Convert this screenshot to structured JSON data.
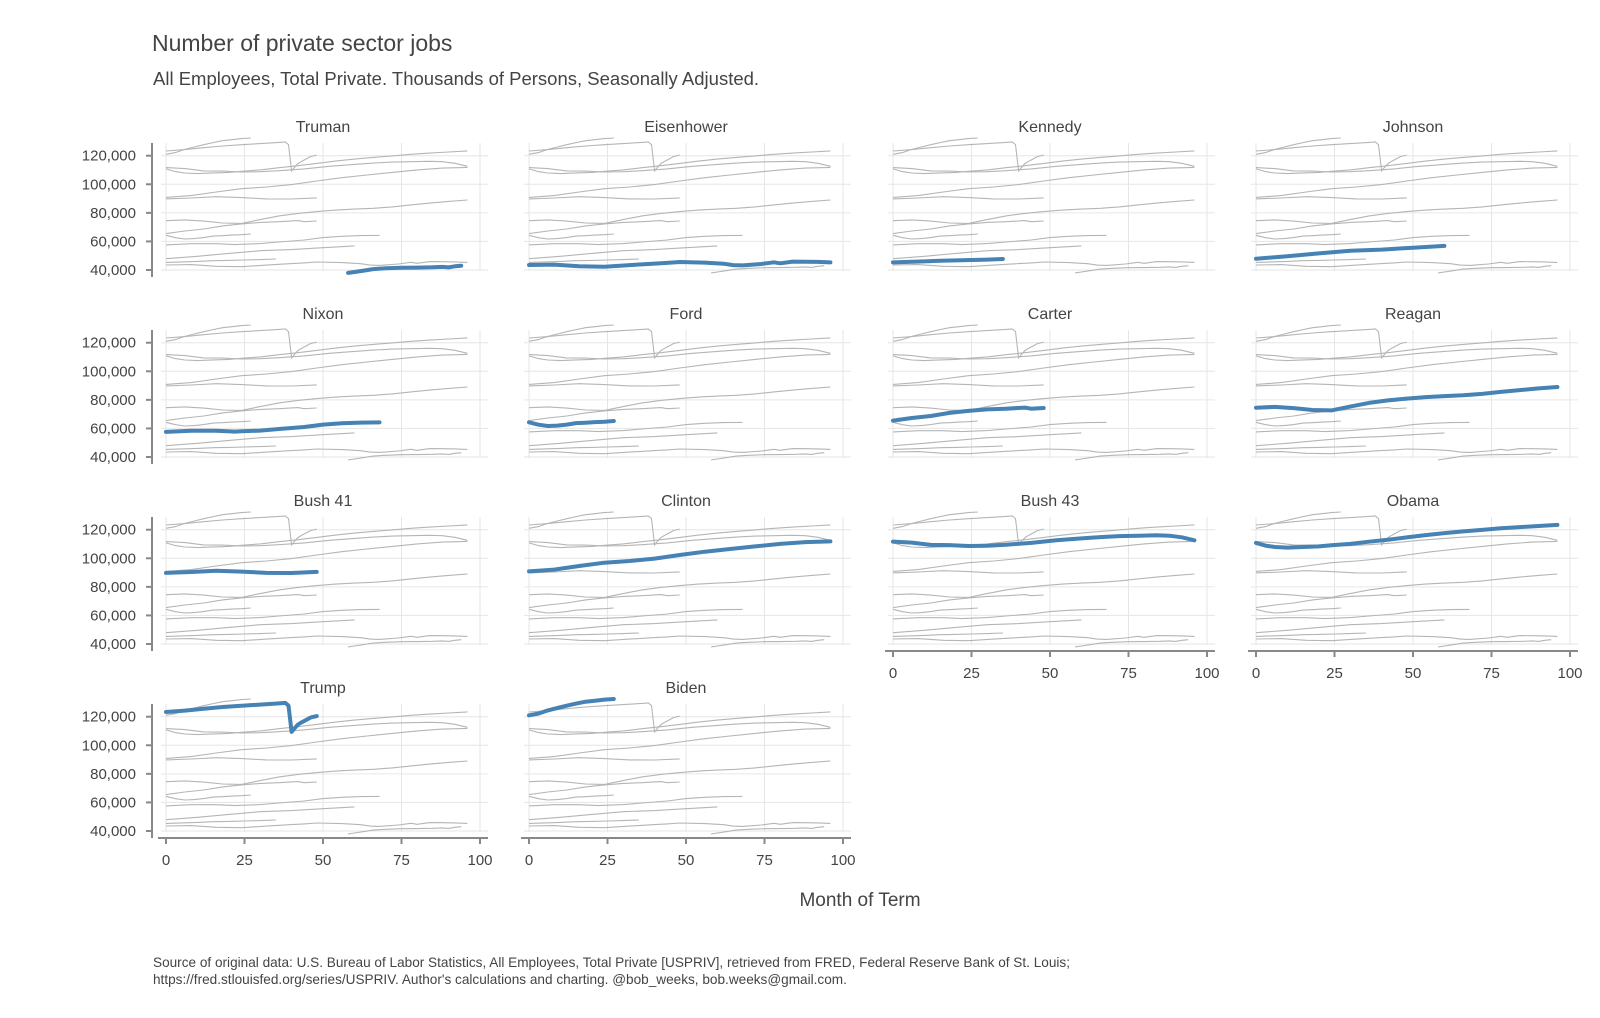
{
  "title": "Number of private sector jobs",
  "subtitle": "All Employees, Total Private. Thousands of Persons, Seasonally Adjusted.",
  "caption_line1": "Source of original data: U.S. Bureau of Labor Statistics, All Employees, Total Private [USPRIV], retrieved from FRED, Federal Reserve Bank of St. Louis;",
  "caption_line2": "https://fred.stlouisfed.org/series/USPRIV. Author's calculations and charting. @bob_weeks, bob.weeks@gmail.com.",
  "chart_data": {
    "type": "line",
    "facet": "small-multiples",
    "xlabel": "Month of Term",
    "ylabel": "",
    "xlim": [
      0,
      100
    ],
    "ylim": [
      40000,
      124000
    ],
    "xticks": [
      0,
      25,
      50,
      75,
      100
    ],
    "yticks": [
      40000,
      60000,
      80000,
      100000,
      120000
    ],
    "ytick_labels": [
      "40,000",
      "60,000",
      "80,000",
      "100,000",
      "120,000"
    ],
    "xtick_labels": [
      "0",
      "25",
      "50",
      "75",
      "100"
    ],
    "grid": true,
    "highlight_color": "#4682b4",
    "background_series_color": "#b5b5b5",
    "series": [
      {
        "name": "Truman",
        "x": [
          58,
          60,
          63,
          66,
          70,
          75,
          80,
          85,
          88,
          90,
          92,
          94
        ],
        "values": [
          38000,
          38600,
          39600,
          40600,
          41200,
          41600,
          41700,
          41900,
          42200,
          41800,
          42600,
          43000
        ]
      },
      {
        "name": "Eisenhower",
        "x": [
          0,
          8,
          16,
          24,
          32,
          40,
          44,
          48,
          56,
          62,
          65,
          68,
          74,
          78,
          80,
          84,
          88,
          92,
          96
        ],
        "values": [
          43500,
          43800,
          42600,
          42300,
          43400,
          44500,
          45000,
          45600,
          45200,
          44400,
          43400,
          43200,
          44200,
          45400,
          44700,
          45900,
          45800,
          45700,
          45300
        ]
      },
      {
        "name": "Kennedy",
        "x": [
          0,
          5,
          10,
          15,
          20,
          25,
          30,
          35
        ],
        "values": [
          45300,
          45700,
          46000,
          46500,
          46700,
          47000,
          47300,
          47700
        ]
      },
      {
        "name": "Johnson",
        "x": [
          0,
          10,
          20,
          30,
          40,
          50,
          60
        ],
        "values": [
          47900,
          49600,
          51600,
          53500,
          54300,
          55600,
          56900
        ]
      },
      {
        "name": "Nixon",
        "x": [
          0,
          8,
          16,
          22,
          24,
          30,
          36,
          44,
          50,
          56,
          62,
          68
        ],
        "values": [
          57600,
          58400,
          58400,
          57800,
          58000,
          58500,
          59600,
          61000,
          62700,
          63600,
          64100,
          64200
        ]
      },
      {
        "name": "Ford",
        "x": [
          0,
          3,
          6,
          9,
          12,
          15,
          18,
          21,
          24,
          27
        ],
        "values": [
          64300,
          62600,
          61700,
          62000,
          62700,
          63700,
          64000,
          64400,
          64700,
          65200
        ]
      },
      {
        "name": "Carter",
        "x": [
          0,
          6,
          12,
          18,
          24,
          30,
          36,
          42,
          44,
          48
        ],
        "values": [
          65500,
          67300,
          68700,
          70900,
          72300,
          73300,
          73800,
          74600,
          73800,
          74300
        ]
      },
      {
        "name": "Reagan",
        "x": [
          0,
          6,
          12,
          18,
          24,
          30,
          36,
          42,
          48,
          54,
          60,
          66,
          72,
          78,
          84,
          90,
          96
        ],
        "values": [
          74500,
          75100,
          74200,
          72900,
          72600,
          75300,
          77900,
          79600,
          80900,
          81900,
          82600,
          83200,
          84200,
          85600,
          86800,
          88000,
          89000
        ]
      },
      {
        "name": "Bush 41",
        "x": [
          0,
          8,
          16,
          24,
          32,
          40,
          48
        ],
        "values": [
          89800,
          90400,
          91300,
          90700,
          89800,
          89700,
          90500
        ]
      },
      {
        "name": "Clinton",
        "x": [
          0,
          8,
          16,
          24,
          32,
          40,
          48,
          56,
          64,
          72,
          80,
          88,
          96
        ],
        "values": [
          90800,
          92100,
          94600,
          96900,
          98100,
          99800,
          102300,
          104600,
          106500,
          108300,
          110100,
          111300,
          111800
        ]
      },
      {
        "name": "Bush 43",
        "x": [
          0,
          6,
          12,
          18,
          24,
          30,
          36,
          44,
          52,
          60,
          66,
          72,
          78,
          84,
          88,
          92,
          96
        ],
        "values": [
          111700,
          111000,
          109400,
          109200,
          108600,
          108800,
          109500,
          110800,
          112600,
          113900,
          114800,
          115500,
          115800,
          116100,
          115800,
          114700,
          112600
        ]
      },
      {
        "name": "Obama",
        "x": [
          0,
          3,
          6,
          10,
          14,
          20,
          24,
          30,
          36,
          42,
          48,
          54,
          60,
          66,
          72,
          78,
          84,
          90,
          96
        ],
        "values": [
          110800,
          108900,
          107900,
          107500,
          107800,
          108300,
          109100,
          110100,
          111600,
          113000,
          114600,
          116200,
          117600,
          118800,
          119900,
          121000,
          121800,
          122600,
          123400
        ]
      },
      {
        "name": "Trump",
        "x": [
          0,
          6,
          12,
          18,
          24,
          30,
          36,
          38,
          39,
          40,
          41,
          42,
          43,
          44,
          46,
          48
        ],
        "values": [
          123300,
          124300,
          125600,
          126800,
          127700,
          128500,
          129300,
          129700,
          127800,
          109400,
          112000,
          114500,
          115800,
          117000,
          119400,
          120400
        ]
      },
      {
        "name": "Biden",
        "x": [
          0,
          3,
          6,
          9,
          12,
          15,
          18,
          21,
          24,
          27
        ],
        "values": [
          121000,
          122200,
          124400,
          126100,
          127700,
          129200,
          130500,
          131200,
          132000,
          132400
        ]
      }
    ]
  }
}
